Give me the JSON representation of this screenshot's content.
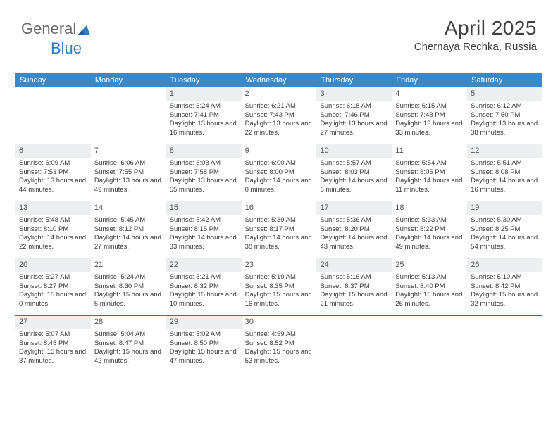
{
  "brand": {
    "part1": "General",
    "part2": "Blue"
  },
  "header": {
    "title": "April 2025",
    "location": "Chernaya Rechka, Russia"
  },
  "colors": {
    "header_bg": "#3b87c8",
    "week_border": "#3b6ea0",
    "shade_bg": "#eceef0",
    "text": "#3a3a3a"
  },
  "days": [
    "Sunday",
    "Monday",
    "Tuesday",
    "Wednesday",
    "Thursday",
    "Friday",
    "Saturday"
  ],
  "weeks": [
    [
      null,
      null,
      {
        "n": "1",
        "sr": "Sunrise: 6:24 AM",
        "ss": "Sunset: 7:41 PM",
        "dl": "Daylight: 13 hours and 16 minutes."
      },
      {
        "n": "2",
        "sr": "Sunrise: 6:21 AM",
        "ss": "Sunset: 7:43 PM",
        "dl": "Daylight: 13 hours and 22 minutes."
      },
      {
        "n": "3",
        "sr": "Sunrise: 6:18 AM",
        "ss": "Sunset: 7:46 PM",
        "dl": "Daylight: 13 hours and 27 minutes."
      },
      {
        "n": "4",
        "sr": "Sunrise: 6:15 AM",
        "ss": "Sunset: 7:48 PM",
        "dl": "Daylight: 13 hours and 33 minutes."
      },
      {
        "n": "5",
        "sr": "Sunrise: 6:12 AM",
        "ss": "Sunset: 7:50 PM",
        "dl": "Daylight: 13 hours and 38 minutes."
      }
    ],
    [
      {
        "n": "6",
        "sr": "Sunrise: 6:09 AM",
        "ss": "Sunset: 7:53 PM",
        "dl": "Daylight: 13 hours and 44 minutes."
      },
      {
        "n": "7",
        "sr": "Sunrise: 6:06 AM",
        "ss": "Sunset: 7:55 PM",
        "dl": "Daylight: 13 hours and 49 minutes."
      },
      {
        "n": "8",
        "sr": "Sunrise: 6:03 AM",
        "ss": "Sunset: 7:58 PM",
        "dl": "Daylight: 13 hours and 55 minutes."
      },
      {
        "n": "9",
        "sr": "Sunrise: 6:00 AM",
        "ss": "Sunset: 8:00 PM",
        "dl": "Daylight: 14 hours and 0 minutes."
      },
      {
        "n": "10",
        "sr": "Sunrise: 5:57 AM",
        "ss": "Sunset: 8:03 PM",
        "dl": "Daylight: 14 hours and 6 minutes."
      },
      {
        "n": "11",
        "sr": "Sunrise: 5:54 AM",
        "ss": "Sunset: 8:05 PM",
        "dl": "Daylight: 14 hours and 11 minutes."
      },
      {
        "n": "12",
        "sr": "Sunrise: 5:51 AM",
        "ss": "Sunset: 8:08 PM",
        "dl": "Daylight: 14 hours and 16 minutes."
      }
    ],
    [
      {
        "n": "13",
        "sr": "Sunrise: 5:48 AM",
        "ss": "Sunset: 8:10 PM",
        "dl": "Daylight: 14 hours and 22 minutes."
      },
      {
        "n": "14",
        "sr": "Sunrise: 5:45 AM",
        "ss": "Sunset: 8:12 PM",
        "dl": "Daylight: 14 hours and 27 minutes."
      },
      {
        "n": "15",
        "sr": "Sunrise: 5:42 AM",
        "ss": "Sunset: 8:15 PM",
        "dl": "Daylight: 14 hours and 33 minutes."
      },
      {
        "n": "16",
        "sr": "Sunrise: 5:39 AM",
        "ss": "Sunset: 8:17 PM",
        "dl": "Daylight: 14 hours and 38 minutes."
      },
      {
        "n": "17",
        "sr": "Sunrise: 5:36 AM",
        "ss": "Sunset: 8:20 PM",
        "dl": "Daylight: 14 hours and 43 minutes."
      },
      {
        "n": "18",
        "sr": "Sunrise: 5:33 AM",
        "ss": "Sunset: 8:22 PM",
        "dl": "Daylight: 14 hours and 49 minutes."
      },
      {
        "n": "19",
        "sr": "Sunrise: 5:30 AM",
        "ss": "Sunset: 8:25 PM",
        "dl": "Daylight: 14 hours and 54 minutes."
      }
    ],
    [
      {
        "n": "20",
        "sr": "Sunrise: 5:27 AM",
        "ss": "Sunset: 8:27 PM",
        "dl": "Daylight: 15 hours and 0 minutes."
      },
      {
        "n": "21",
        "sr": "Sunrise: 5:24 AM",
        "ss": "Sunset: 8:30 PM",
        "dl": "Daylight: 15 hours and 5 minutes."
      },
      {
        "n": "22",
        "sr": "Sunrise: 5:21 AM",
        "ss": "Sunset: 8:32 PM",
        "dl": "Daylight: 15 hours and 10 minutes."
      },
      {
        "n": "23",
        "sr": "Sunrise: 5:19 AM",
        "ss": "Sunset: 8:35 PM",
        "dl": "Daylight: 15 hours and 16 minutes."
      },
      {
        "n": "24",
        "sr": "Sunrise: 5:16 AM",
        "ss": "Sunset: 8:37 PM",
        "dl": "Daylight: 15 hours and 21 minutes."
      },
      {
        "n": "25",
        "sr": "Sunrise: 5:13 AM",
        "ss": "Sunset: 8:40 PM",
        "dl": "Daylight: 15 hours and 26 minutes."
      },
      {
        "n": "26",
        "sr": "Sunrise: 5:10 AM",
        "ss": "Sunset: 8:42 PM",
        "dl": "Daylight: 15 hours and 32 minutes."
      }
    ],
    [
      {
        "n": "27",
        "sr": "Sunrise: 5:07 AM",
        "ss": "Sunset: 8:45 PM",
        "dl": "Daylight: 15 hours and 37 minutes."
      },
      {
        "n": "28",
        "sr": "Sunrise: 5:04 AM",
        "ss": "Sunset: 8:47 PM",
        "dl": "Daylight: 15 hours and 42 minutes."
      },
      {
        "n": "29",
        "sr": "Sunrise: 5:02 AM",
        "ss": "Sunset: 8:50 PM",
        "dl": "Daylight: 15 hours and 47 minutes."
      },
      {
        "n": "30",
        "sr": "Sunrise: 4:59 AM",
        "ss": "Sunset: 8:52 PM",
        "dl": "Daylight: 15 hours and 53 minutes."
      },
      null,
      null,
      null
    ]
  ]
}
